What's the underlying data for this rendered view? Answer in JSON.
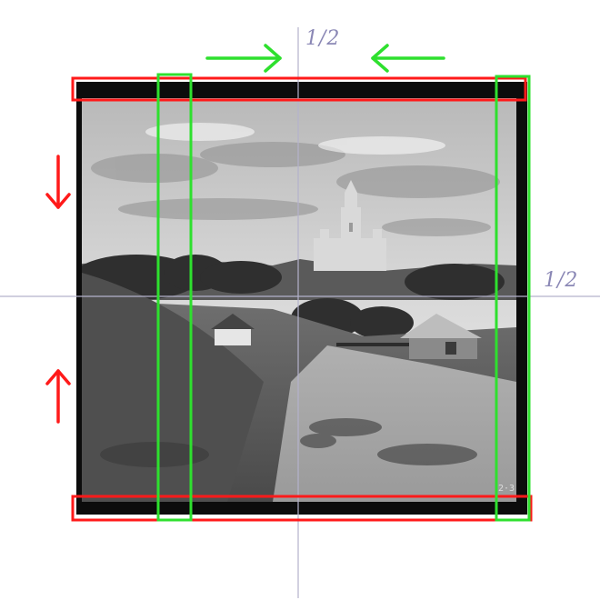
{
  "annotations": {
    "top_half_label": "1/2",
    "right_half_label": "1/2"
  },
  "colors": {
    "guide_line": "#b4b2cc",
    "handwriting": "#8a87b5",
    "horizontal_crop": "#ff1a1a",
    "vertical_crop": "#2ee02e",
    "photo_border": "#0c0c0c"
  },
  "photo": {
    "subject": "monochrome-landscape-with-church-on-hill"
  }
}
